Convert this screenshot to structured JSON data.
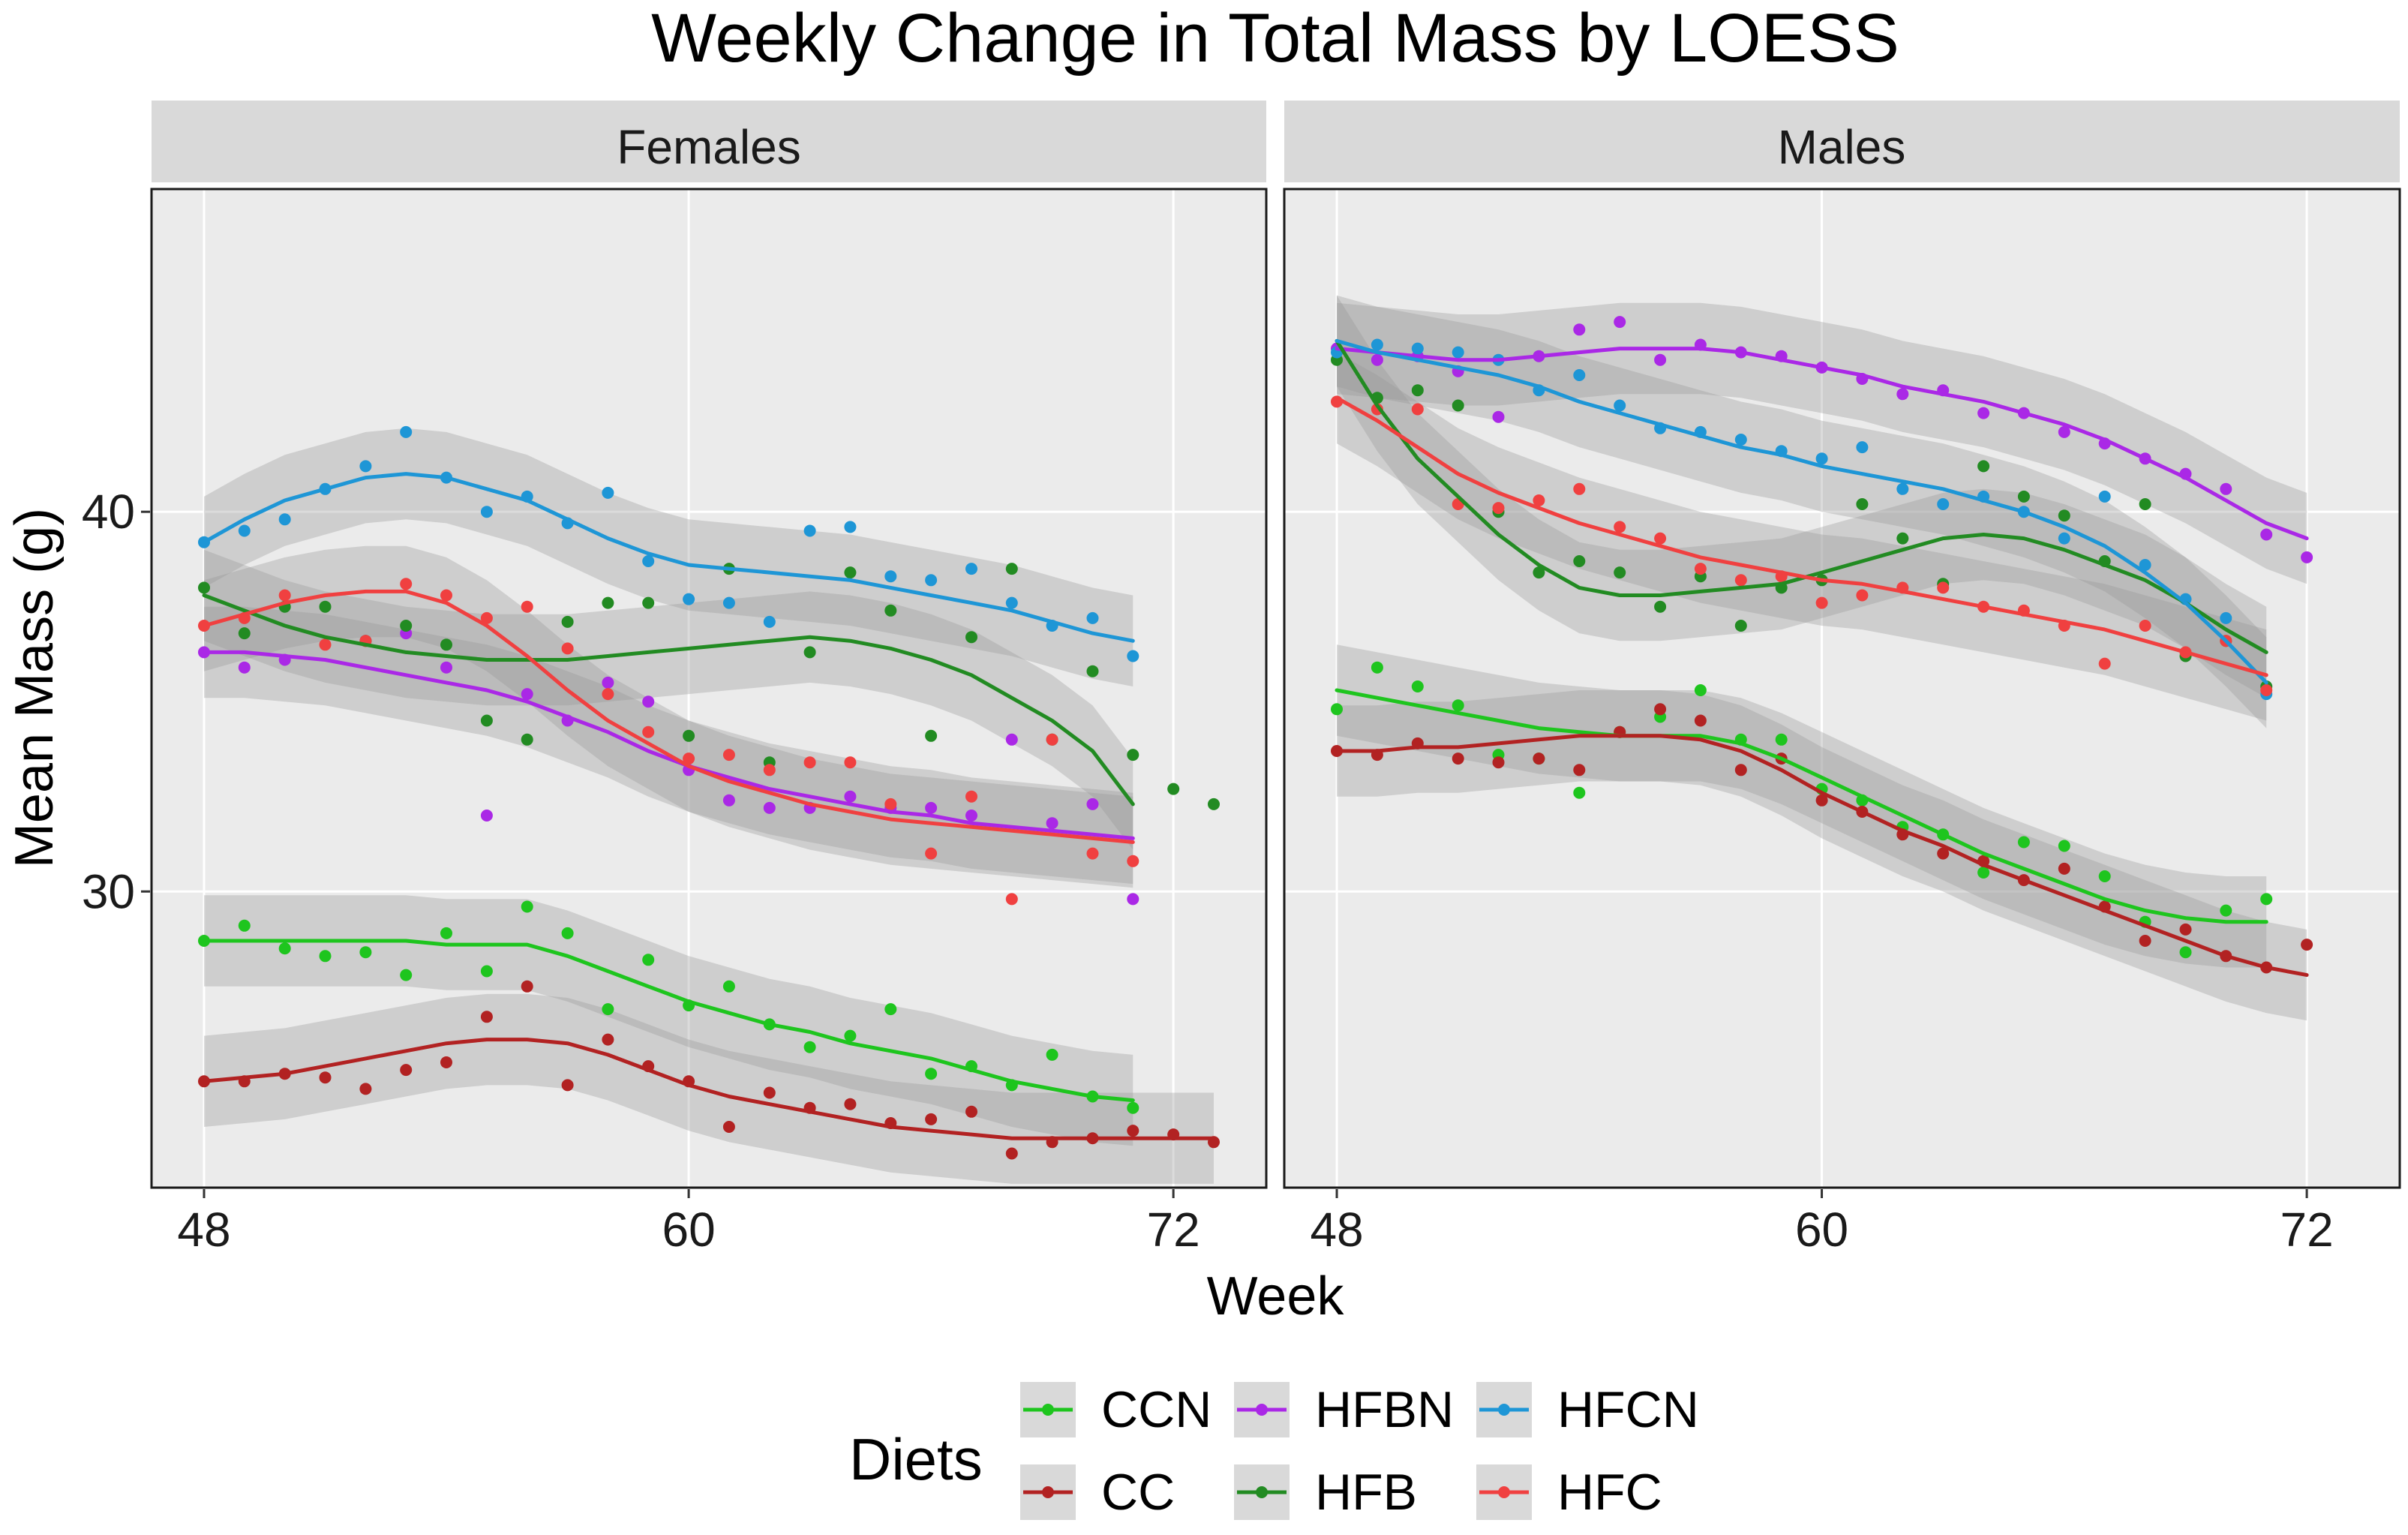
{
  "chart_data": {
    "type": "scatter",
    "title": "Weekly Change in Total Mass by LOESS",
    "xlabel": "Week",
    "ylabel": "Mean Mass (g)",
    "xlim": [
      46.7,
      74.3
    ],
    "ylim": [
      22.2,
      48.5
    ],
    "xticks": [
      48,
      60,
      72
    ],
    "yticks": [
      30,
      40
    ],
    "legend": {
      "title": "Diets",
      "placement": "bottom",
      "order": [
        "CCN",
        "CC",
        "HFBN",
        "HFB",
        "HFCN",
        "HFC"
      ]
    },
    "colors": {
      "CCN": "#1ec51e",
      "CC": "#b22222",
      "HFBN": "#aa28e6",
      "HFB": "#228b22",
      "HFCN": "#1e96d6",
      "HFC": "#f04040"
    },
    "weeks": [
      48,
      49,
      50,
      51,
      52,
      53,
      54,
      55,
      56,
      57,
      58,
      59,
      60,
      61,
      62,
      63,
      64,
      65,
      66,
      67,
      68,
      69,
      70,
      71,
      72,
      73
    ],
    "panels": [
      {
        "label": "Females",
        "series": [
          {
            "name": "CCN",
            "points": [
              28.7,
              29.1,
              28.5,
              28.3,
              28.4,
              27.8,
              28.9,
              27.9,
              29.6,
              28.9,
              26.9,
              28.2,
              27.0,
              27.5,
              26.5,
              25.9,
              26.2,
              26.9,
              25.2,
              25.4,
              24.9,
              25.7,
              24.6,
              24.3,
              null,
              null
            ],
            "smooth": [
              28.7,
              28.7,
              28.7,
              28.7,
              28.7,
              28.7,
              28.6,
              28.6,
              28.6,
              28.3,
              27.9,
              27.5,
              27.1,
              26.8,
              26.5,
              26.3,
              26.0,
              25.8,
              25.6,
              25.3,
              25.0,
              24.8,
              24.6,
              24.5,
              null,
              null
            ]
          },
          {
            "name": "CC",
            "points": [
              25.0,
              25.0,
              25.2,
              25.1,
              24.8,
              25.3,
              25.5,
              26.7,
              27.5,
              24.9,
              26.1,
              25.4,
              25.0,
              23.8,
              24.7,
              24.3,
              24.4,
              23.9,
              24.0,
              24.2,
              23.1,
              23.4,
              23.5,
              23.7,
              23.6,
              23.4
            ],
            "smooth": [
              25.0,
              25.1,
              25.2,
              25.4,
              25.6,
              25.8,
              26.0,
              26.1,
              26.1,
              26.0,
              25.7,
              25.3,
              24.9,
              24.6,
              24.4,
              24.2,
              24.0,
              23.8,
              23.7,
              23.6,
              23.5,
              23.5,
              23.5,
              23.5,
              23.5,
              23.5
            ]
          },
          {
            "name": "HFBN",
            "points": [
              36.3,
              35.9,
              36.1,
              null,
              36.6,
              36.8,
              35.9,
              32.0,
              35.2,
              34.5,
              35.5,
              35.0,
              33.2,
              32.4,
              32.2,
              32.2,
              32.5,
              32.2,
              32.2,
              32.0,
              34.0,
              31.8,
              32.3,
              29.8,
              null,
              null
            ],
            "smooth": [
              36.3,
              36.3,
              36.2,
              36.1,
              35.9,
              35.7,
              35.5,
              35.3,
              35.0,
              34.6,
              34.2,
              33.7,
              33.3,
              33.0,
              32.7,
              32.5,
              32.3,
              32.1,
              32.0,
              31.8,
              31.7,
              31.6,
              31.5,
              31.4,
              null,
              null
            ]
          },
          {
            "name": "HFB",
            "points": [
              38.0,
              36.8,
              37.5,
              37.5,
              36.6,
              37.0,
              36.5,
              34.5,
              34.0,
              37.1,
              37.6,
              37.6,
              34.1,
              38.5,
              33.4,
              36.3,
              38.4,
              37.4,
              34.1,
              36.7,
              38.5,
              34.0,
              35.8,
              33.6,
              32.7,
              32.3
            ],
            "smooth": [
              37.8,
              37.4,
              37.0,
              36.7,
              36.5,
              36.3,
              36.2,
              36.1,
              36.1,
              36.1,
              36.2,
              36.3,
              36.4,
              36.5,
              36.6,
              36.7,
              36.6,
              36.4,
              36.1,
              35.7,
              35.1,
              34.5,
              33.7,
              32.3,
              null,
              null
            ]
          },
          {
            "name": "HFCN",
            "points": [
              39.2,
              39.5,
              39.8,
              40.6,
              41.2,
              42.1,
              40.9,
              40.0,
              40.4,
              39.7,
              40.5,
              38.7,
              37.7,
              37.6,
              37.1,
              39.5,
              39.6,
              38.3,
              38.2,
              38.5,
              37.6,
              37.0,
              37.2,
              36.2,
              null,
              null
            ],
            "smooth": [
              39.2,
              39.8,
              40.3,
              40.6,
              40.9,
              41.0,
              40.9,
              40.6,
              40.3,
              39.8,
              39.3,
              38.9,
              38.6,
              38.5,
              38.4,
              38.3,
              38.2,
              38.0,
              37.8,
              37.6,
              37.4,
              37.1,
              36.8,
              36.6,
              null,
              null
            ]
          },
          {
            "name": "HFC",
            "points": [
              37.0,
              37.2,
              37.8,
              36.5,
              36.6,
              38.1,
              37.8,
              37.2,
              37.5,
              36.4,
              35.2,
              34.2,
              33.5,
              33.6,
              33.2,
              33.4,
              33.4,
              32.3,
              31.0,
              32.5,
              29.8,
              34.0,
              31.0,
              30.8,
              null,
              null
            ],
            "smooth": [
              37.0,
              37.3,
              37.6,
              37.8,
              37.9,
              37.9,
              37.6,
              37.0,
              36.2,
              35.3,
              34.5,
              33.9,
              33.3,
              32.9,
              32.6,
              32.3,
              32.1,
              31.9,
              31.8,
              31.7,
              31.6,
              31.5,
              31.4,
              31.3,
              null,
              null
            ]
          }
        ]
      },
      {
        "label": "Males",
        "series": [
          {
            "name": "CCN",
            "points": [
              34.8,
              35.9,
              35.4,
              34.9,
              33.6,
              33.5,
              32.6,
              34.2,
              34.6,
              35.3,
              34.0,
              34.0,
              32.7,
              32.4,
              31.7,
              31.5,
              30.5,
              31.3,
              31.2,
              30.4,
              29.2,
              28.4,
              29.5,
              29.8,
              null,
              null
            ],
            "smooth": [
              35.3,
              35.1,
              34.9,
              34.7,
              34.5,
              34.3,
              34.2,
              34.1,
              34.1,
              34.1,
              33.9,
              33.5,
              33.0,
              32.5,
              32.0,
              31.5,
              31.0,
              30.6,
              30.2,
              29.8,
              29.5,
              29.3,
              29.2,
              29.2,
              null,
              null
            ]
          },
          {
            "name": "CC",
            "points": [
              33.7,
              33.6,
              33.9,
              33.5,
              33.4,
              33.5,
              33.2,
              34.2,
              34.8,
              34.5,
              33.2,
              33.5,
              32.4,
              32.1,
              31.5,
              31.0,
              30.8,
              30.3,
              30.6,
              29.6,
              28.7,
              29.0,
              28.3,
              28.0,
              28.6,
              null
            ],
            "smooth": [
              33.7,
              33.7,
              33.8,
              33.8,
              33.9,
              34.0,
              34.1,
              34.1,
              34.1,
              34.0,
              33.7,
              33.2,
              32.6,
              32.1,
              31.6,
              31.2,
              30.7,
              30.3,
              29.9,
              29.5,
              29.1,
              28.7,
              28.3,
              28.0,
              27.8,
              null
            ]
          },
          {
            "name": "HFBN",
            "points": [
              44.3,
              44.0,
              44.1,
              43.7,
              42.5,
              44.1,
              44.8,
              45.0,
              44.0,
              44.4,
              44.2,
              44.1,
              43.8,
              43.5,
              43.1,
              43.2,
              42.6,
              42.6,
              42.1,
              41.8,
              41.4,
              41.0,
              40.6,
              39.4,
              38.8,
              null
            ],
            "smooth": [
              44.3,
              44.2,
              44.1,
              44.0,
              44.0,
              44.1,
              44.2,
              44.3,
              44.3,
              44.3,
              44.2,
              44.0,
              43.8,
              43.6,
              43.3,
              43.1,
              42.9,
              42.6,
              42.3,
              41.9,
              41.4,
              40.9,
              40.3,
              39.7,
              39.3,
              null
            ]
          },
          {
            "name": "HFB",
            "points": [
              44.0,
              43.0,
              43.2,
              42.8,
              40.0,
              38.4,
              38.7,
              38.4,
              37.5,
              38.3,
              37.0,
              38.0,
              38.2,
              40.2,
              39.3,
              38.1,
              41.2,
              40.4,
              39.9,
              38.7,
              40.2,
              36.2,
              36.6,
              35.4,
              null,
              null
            ],
            "smooth": [
              44.5,
              42.8,
              41.4,
              40.4,
              39.4,
              38.6,
              38.0,
              37.8,
              37.8,
              37.9,
              38.0,
              38.1,
              38.4,
              38.7,
              39.0,
              39.3,
              39.4,
              39.3,
              39.0,
              38.6,
              38.2,
              37.6,
              36.9,
              36.3,
              null,
              null
            ]
          },
          {
            "name": "HFCN",
            "points": [
              44.2,
              44.4,
              44.3,
              44.2,
              44.0,
              43.2,
              43.6,
              42.8,
              42.2,
              42.1,
              41.9,
              41.6,
              41.4,
              41.7,
              40.6,
              40.2,
              40.4,
              40.0,
              39.3,
              40.4,
              38.6,
              37.7,
              37.2,
              35.2,
              null,
              null
            ],
            "smooth": [
              44.5,
              44.2,
              44.0,
              43.8,
              43.6,
              43.3,
              42.9,
              42.6,
              42.3,
              42.0,
              41.7,
              41.5,
              41.2,
              41.0,
              40.8,
              40.6,
              40.3,
              40.0,
              39.6,
              39.1,
              38.4,
              37.6,
              36.6,
              35.5,
              null,
              null
            ]
          },
          {
            "name": "HFC",
            "points": [
              42.9,
              42.7,
              42.7,
              40.2,
              40.1,
              40.3,
              40.6,
              39.6,
              39.3,
              38.5,
              38.2,
              38.3,
              37.6,
              37.8,
              38.0,
              38.0,
              37.5,
              37.4,
              37.0,
              36.0,
              37.0,
              36.3,
              36.6,
              35.3,
              null,
              null
            ],
            "smooth": [
              43.0,
              42.4,
              41.7,
              41.0,
              40.5,
              40.1,
              39.7,
              39.4,
              39.1,
              38.8,
              38.6,
              38.4,
              38.2,
              38.1,
              37.9,
              37.7,
              37.5,
              37.3,
              37.1,
              36.9,
              36.6,
              36.3,
              36.0,
              35.7,
              null,
              null
            ]
          }
        ]
      }
    ]
  }
}
